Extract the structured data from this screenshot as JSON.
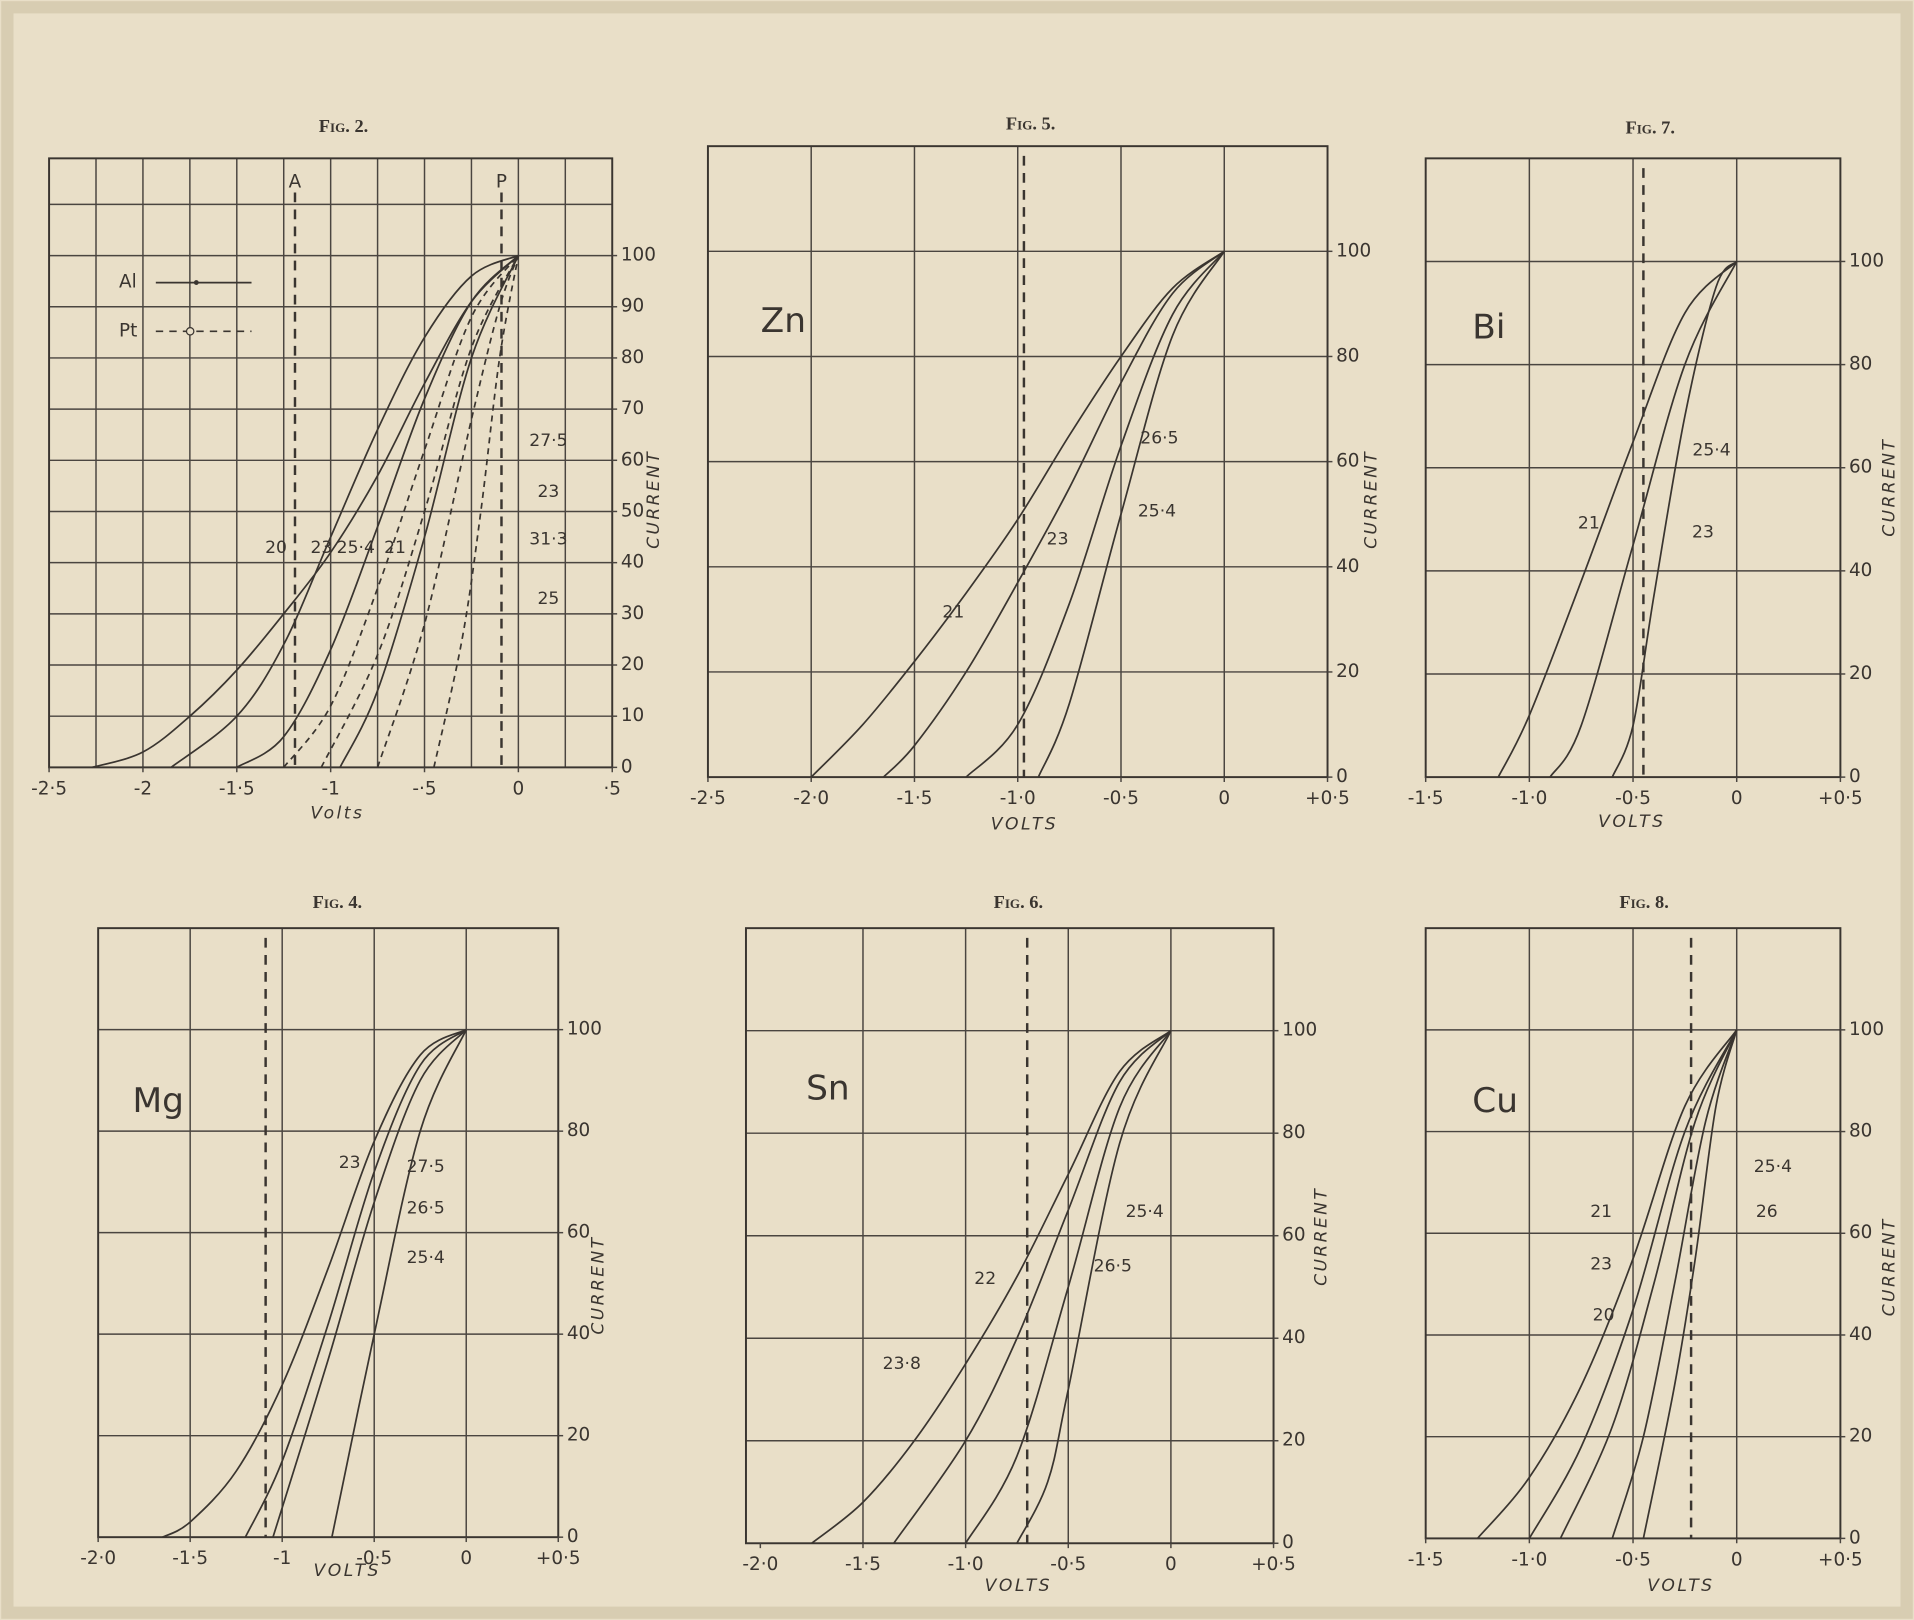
{
  "chart_data": [
    {
      "type": "line",
      "title": "Fig. 2.",
      "xlabel": "Volts",
      "ylabel": "CURRENT",
      "color": "#3a3530",
      "xlim": [
        -2.5,
        0.5
      ],
      "ylim": [
        0,
        119
      ],
      "xticks": [
        {
          "value": -2.5,
          "label": "-2·5"
        },
        {
          "value": -2,
          "label": "-2"
        },
        {
          "value": -1.5,
          "label": "-1·5"
        },
        {
          "value": -1,
          "label": "-1"
        },
        {
          "value": -0.5,
          "label": "-·5"
        },
        0,
        {
          "value": 0.5,
          "label": "·5"
        }
      ],
      "yticks": [
        0,
        10,
        20,
        30,
        40,
        50,
        60,
        70,
        80,
        90,
        100
      ],
      "xgrid": [
        -2.25,
        -2,
        -1.75,
        -1.5,
        -1.25,
        -1,
        -0.75,
        -0.5,
        -0.25,
        0,
        0.25
      ],
      "ygrid": [
        10,
        20,
        30,
        40,
        50,
        60,
        70,
        80,
        90,
        100,
        110
      ],
      "vlines": [
        {
          "value": -1.19,
          "label": "A"
        },
        {
          "value": -0.09,
          "label": "P"
        }
      ],
      "legend": [
        {
          "label": "Al",
          "style": "solid"
        },
        {
          "label": "Pt",
          "style": "dashed"
        }
      ],
      "series": [
        {
          "name": "20",
          "style": "solid",
          "x": [
            -2.27,
            -2,
            -1.75,
            -1.5,
            -1.25,
            -1,
            -0.75,
            -0.5,
            -0.25,
            0
          ],
          "values": [
            0,
            3,
            10,
            19,
            30,
            42,
            57,
            75,
            91,
            100
          ]
        },
        {
          "name": "23",
          "style": "solid",
          "x": [
            -1.85,
            -1.5,
            -1.25,
            -1,
            -0.75,
            -0.5,
            -0.25,
            0
          ],
          "values": [
            0,
            10,
            24,
            45,
            66,
            84,
            96,
            100
          ]
        },
        {
          "name": "25·4",
          "style": "solid",
          "x": [
            -1.5,
            -1.25,
            -1,
            -0.75,
            -0.5,
            -0.25,
            0
          ],
          "values": [
            0,
            6,
            23,
            47,
            72,
            91,
            100
          ]
        },
        {
          "name": "21",
          "style": "solid",
          "x": [
            -0.95,
            -0.75,
            -0.5,
            -0.25,
            0
          ],
          "values": [
            0,
            15,
            45,
            80,
            100
          ]
        },
        {
          "name": "27·5",
          "style": "dashed",
          "x": [
            -1.25,
            -1,
            -0.75,
            -0.5,
            -0.25,
            0
          ],
          "values": [
            0,
            12,
            35,
            62,
            88,
            100
          ]
        },
        {
          "name": "23",
          "style": "dashed",
          "x": [
            -1.05,
            -0.75,
            -0.5,
            -0.25,
            0
          ],
          "values": [
            0,
            22,
            50,
            82,
            100
          ]
        },
        {
          "name": "31·3",
          "style": "dashed",
          "x": [
            -0.75,
            -0.5,
            -0.25,
            -0.1,
            0
          ],
          "values": [
            0,
            28,
            68,
            90,
            100
          ]
        },
        {
          "name": "25",
          "style": "dashed",
          "x": [
            -0.45,
            -0.3,
            -0.2,
            -0.1,
            0
          ],
          "values": [
            0,
            25,
            50,
            80,
            100
          ]
        }
      ]
    },
    {
      "type": "line",
      "title": "Fig. 5.",
      "label": "Zn",
      "xlabel": "VOLTS",
      "ylabel": "CURRENT",
      "color": "#3a3530",
      "xlim": [
        -2.5,
        0.5
      ],
      "ylim": [
        0,
        120
      ],
      "xticks": [
        {
          "value": -2.5,
          "label": "-2·5"
        },
        {
          "value": -2,
          "label": "-2·0"
        },
        {
          "value": -1.5,
          "label": "-1·5"
        },
        {
          "value": -1,
          "label": "-1·0"
        },
        {
          "value": -0.5,
          "label": "-0·5"
        },
        0,
        {
          "value": 0.5,
          "label": "+0·5"
        }
      ],
      "yticks": [
        0,
        20,
        40,
        60,
        80,
        100
      ],
      "xgrid": [
        -2,
        -1.5,
        -1,
        -0.5,
        0
      ],
      "ygrid": [
        20,
        40,
        60,
        80,
        100
      ],
      "vlines": [
        {
          "value": -0.97
        }
      ],
      "series": [
        {
          "name": "21",
          "x": [
            -2,
            -1.75,
            -1.5,
            -1.25,
            -1,
            -0.75,
            -0.5,
            -0.25,
            0
          ],
          "values": [
            0,
            10,
            22,
            35,
            49,
            65,
            80,
            93,
            100
          ]
        },
        {
          "name": "23",
          "x": [
            -1.65,
            -1.5,
            -1.25,
            -1,
            -0.75,
            -0.5,
            -0.25,
            0
          ],
          "values": [
            0,
            6,
            20,
            37,
            55,
            75,
            92,
            100
          ]
        },
        {
          "name": "26·5",
          "x": [
            -1.25,
            -1,
            -0.75,
            -0.5,
            -0.25,
            0
          ],
          "values": [
            0,
            10,
            33,
            63,
            88,
            100
          ]
        },
        {
          "name": "25·4",
          "x": [
            -0.9,
            -0.75,
            -0.5,
            -0.25,
            0
          ],
          "values": [
            0,
            14,
            50,
            84,
            100
          ]
        }
      ]
    },
    {
      "type": "line",
      "title": "Fig. 7.",
      "label": "Bi",
      "xlabel": "VOLTS",
      "ylabel": "CURRENT",
      "color": "#3a3530",
      "xlim": [
        -1.5,
        0.5
      ],
      "ylim": [
        0,
        120
      ],
      "xticks": [
        {
          "value": -1.5,
          "label": "-1·5"
        },
        {
          "value": -1,
          "label": "-1·0"
        },
        {
          "value": -0.5,
          "label": "-0·5"
        },
        0,
        {
          "value": 0.5,
          "label": "+0·5"
        }
      ],
      "yticks": [
        0,
        20,
        40,
        60,
        80,
        100
      ],
      "xgrid": [
        -1,
        -0.5,
        0
      ],
      "ygrid": [
        20,
        40,
        60,
        80,
        100
      ],
      "vlines": [
        {
          "value": -0.45
        }
      ],
      "series": [
        {
          "name": "21",
          "x": [
            -1.15,
            -1,
            -0.75,
            -0.5,
            -0.25,
            0
          ],
          "values": [
            0,
            12,
            38,
            65,
            90,
            100
          ]
        },
        {
          "name": "23",
          "x": [
            -0.9,
            -0.75,
            -0.5,
            -0.25,
            0
          ],
          "values": [
            0,
            10,
            45,
            80,
            100
          ]
        },
        {
          "name": "25·4",
          "x": [
            -0.6,
            -0.5,
            -0.4,
            -0.25,
            -0.1,
            0
          ],
          "values": [
            0,
            10,
            35,
            70,
            95,
            100
          ]
        }
      ]
    },
    {
      "type": "line",
      "title": "Fig. 4.",
      "label": "Mg",
      "xlabel": "VOLTS",
      "ylabel": "CURRENT",
      "color": "#3a3530",
      "xlim": [
        -2,
        0.5
      ],
      "ylim": [
        0,
        120
      ],
      "xticks": [
        {
          "value": -2,
          "label": "-2·0"
        },
        {
          "value": -1.5,
          "label": "-1·5"
        },
        {
          "value": -1,
          "label": "-1"
        },
        {
          "value": -0.5,
          "label": "-0·5"
        },
        0,
        {
          "value": 0.5,
          "label": "+0·5"
        }
      ],
      "yticks": [
        0,
        20,
        40,
        60,
        80,
        100
      ],
      "xgrid": [
        -1.5,
        -1,
        -0.5,
        0
      ],
      "ygrid": [
        20,
        40,
        60,
        80,
        100
      ],
      "vlines": [
        {
          "value": -1.09
        }
      ],
      "series": [
        {
          "name": "23",
          "x": [
            -1.65,
            -1.5,
            -1.25,
            -1,
            -0.75,
            -0.5,
            -0.25,
            0
          ],
          "values": [
            0,
            3,
            13,
            30,
            53,
            78,
            95,
            100
          ]
        },
        {
          "name": "27·5",
          "x": [
            -1.2,
            -1,
            -0.75,
            -0.5,
            -0.25,
            0
          ],
          "values": [
            0,
            15,
            42,
            72,
            93,
            100
          ]
        },
        {
          "name": "26·5",
          "x": [
            -1.05,
            -0.75,
            -0.5,
            -0.25,
            0
          ],
          "values": [
            0,
            35,
            66,
            90,
            100
          ]
        },
        {
          "name": "25·4",
          "x": [
            -0.73,
            -0.5,
            -0.25,
            0
          ],
          "values": [
            0,
            40,
            80,
            100
          ]
        }
      ]
    },
    {
      "type": "line",
      "title": "Fig. 6.",
      "label": "Sn",
      "xlabel": "VOLTS",
      "ylabel": "CURRENT",
      "color": "#3a3530",
      "xlim": [
        -2.07,
        0.5
      ],
      "ylim": [
        0,
        120
      ],
      "xticks": [
        {
          "value": -2,
          "label": "-2·0"
        },
        {
          "value": -1.5,
          "label": "-1·5"
        },
        {
          "value": -1,
          "label": "-1·0"
        },
        {
          "value": -0.5,
          "label": "-0·5"
        },
        0,
        {
          "value": 0.5,
          "label": "+0·5"
        }
      ],
      "yticks": [
        0,
        20,
        40,
        60,
        80,
        100
      ],
      "xgrid": [
        -1.5,
        -1,
        -0.5,
        0
      ],
      "ygrid": [
        20,
        40,
        60,
        80,
        100
      ],
      "vlines": [
        {
          "value": -0.7
        }
      ],
      "series": [
        {
          "name": "23·8",
          "x": [
            -1.75,
            -1.5,
            -1.25,
            -1,
            -0.75,
            -0.5,
            -0.25,
            0
          ],
          "values": [
            0,
            8,
            20,
            35,
            52,
            72,
            92,
            100
          ]
        },
        {
          "name": "22",
          "x": [
            -1.35,
            -1,
            -0.75,
            -0.5,
            -0.25,
            0
          ],
          "values": [
            0,
            20,
            40,
            65,
            90,
            100
          ]
        },
        {
          "name": "25·4",
          "x": [
            -1,
            -0.75,
            -0.5,
            -0.25,
            0
          ],
          "values": [
            0,
            17,
            50,
            85,
            100
          ]
        },
        {
          "name": "26·5",
          "x": [
            -0.75,
            -0.6,
            -0.5,
            -0.25,
            0
          ],
          "values": [
            0,
            12,
            30,
            78,
            100
          ]
        }
      ]
    },
    {
      "type": "line",
      "title": "Fig. 8.",
      "label": "Cu",
      "xlabel": "VOLTS",
      "ylabel": "CURRENT",
      "color": "#3a3530",
      "xlim": [
        -1.5,
        0.5
      ],
      "ylim": [
        0,
        120
      ],
      "xticks": [
        {
          "value": -1.5,
          "label": "-1·5"
        },
        {
          "value": -1,
          "label": "-1·0"
        },
        {
          "value": -0.5,
          "label": "-0·5"
        },
        0,
        {
          "value": 0.5,
          "label": "+0·5"
        }
      ],
      "yticks": [
        0,
        20,
        40,
        60,
        80,
        100
      ],
      "xgrid": [
        -1,
        -0.5,
        0
      ],
      "ygrid": [
        20,
        40,
        60,
        80,
        100
      ],
      "vlines": [
        {
          "value": -0.22
        }
      ],
      "series": [
        {
          "name": "20",
          "x": [
            -1.25,
            -1,
            -0.75,
            -0.5,
            -0.25,
            0
          ],
          "values": [
            0,
            12,
            30,
            55,
            85,
            100
          ]
        },
        {
          "name": "23",
          "x": [
            -1,
            -0.75,
            -0.5,
            -0.25,
            0
          ],
          "values": [
            0,
            18,
            45,
            80,
            100
          ]
        },
        {
          "name": "21",
          "x": [
            -0.85,
            -0.6,
            -0.4,
            -0.2,
            0
          ],
          "values": [
            0,
            22,
            50,
            82,
            100
          ]
        },
        {
          "name": "25·4",
          "x": [
            -0.6,
            -0.45,
            -0.3,
            -0.15,
            0
          ],
          "values": [
            0,
            20,
            50,
            82,
            100
          ]
        },
        {
          "name": "26",
          "x": [
            -0.45,
            -0.3,
            -0.2,
            -0.1,
            0
          ],
          "values": [
            0,
            30,
            55,
            85,
            100
          ]
        }
      ]
    }
  ]
}
